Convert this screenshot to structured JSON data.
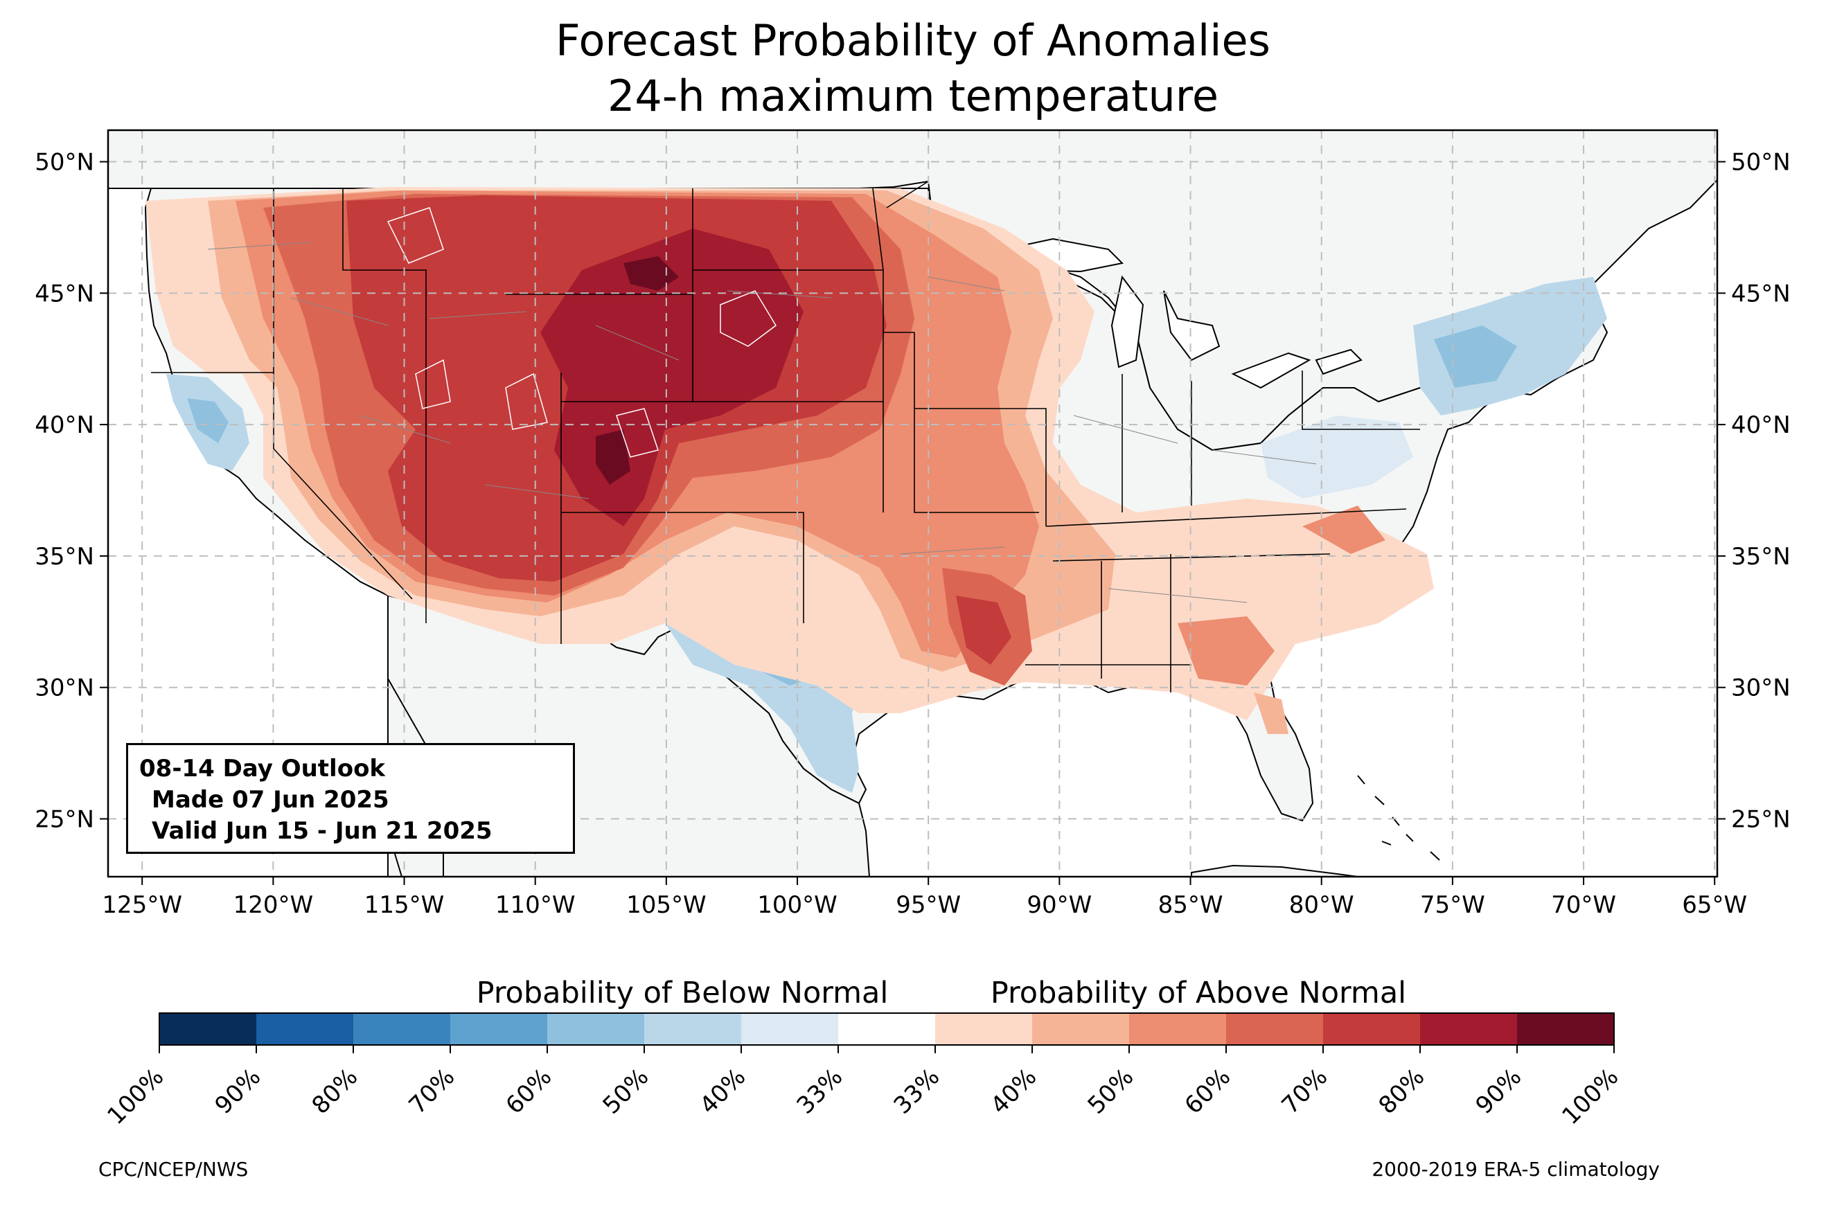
{
  "title": "Forecast Probability of Anomalies",
  "subtitle": "24-h maximum temperature",
  "map": {
    "projection": "lat-lon",
    "lon_range": [
      -126.3,
      -64.9
    ],
    "lat_range": [
      22.8,
      51.2
    ],
    "lat_ticks": [
      "50°N",
      "45°N",
      "40°N",
      "35°N",
      "30°N",
      "25°N"
    ],
    "lat_values": [
      50,
      45,
      40,
      35,
      30,
      25
    ],
    "lon_ticks": [
      "125°W",
      "120°W",
      "115°W",
      "110°W",
      "105°W",
      "100°W",
      "95°W",
      "90°W",
      "85°W",
      "80°W",
      "75°W",
      "70°W",
      "65°W"
    ],
    "lon_values": [
      -125,
      -120,
      -115,
      -110,
      -105,
      -100,
      -95,
      -90,
      -85,
      -80,
      -75,
      -70,
      -65
    ],
    "gridlines": "dashed",
    "land_color": "#f4f6f5",
    "ocean_color": "#ffffff"
  },
  "info_box": {
    "line1": "08-14 Day Outlook",
    "line2": "Made 07 Jun 2025",
    "line3": "Valid Jun 15 - Jun 21 2025"
  },
  "colorbar": {
    "below_label": "Probability of Below Normal",
    "above_label": "Probability of Above Normal",
    "tick_labels": [
      "100%",
      "90%",
      "80%",
      "70%",
      "60%",
      "50%",
      "40%",
      "33%",
      "33%",
      "40%",
      "50%",
      "60%",
      "70%",
      "80%",
      "90%",
      "100%"
    ],
    "colors": [
      "#072d5b",
      "#1a5ea3",
      "#3a84bd",
      "#5ea3cf",
      "#8fc1de",
      "#bad7ea",
      "#dde9f3",
      "#ffffff",
      "#fddac8",
      "#f6b497",
      "#ed8d71",
      "#db6553",
      "#c43b3b",
      "#a31b2e",
      "#6b0b22"
    ]
  },
  "regions": [
    {
      "name": "above-70-80-west",
      "category": "above",
      "probability": 0.75,
      "color": "#c43b3b"
    },
    {
      "name": "above-80-90-colorado",
      "category": "above",
      "probability": 0.85,
      "color": "#a31b2e"
    },
    {
      "name": "above-90-100-wyoming",
      "category": "above",
      "probability": 0.92,
      "color": "#6b0b22"
    },
    {
      "name": "above-50-70-northern-plains",
      "category": "above",
      "probability": 0.6,
      "color": "#db6553"
    },
    {
      "name": "below-50-60-texas",
      "category": "below",
      "probability": 0.55,
      "color": "#8fc1de"
    },
    {
      "name": "below-40-50-california",
      "category": "below",
      "probability": 0.45,
      "color": "#bad7ea"
    },
    {
      "name": "below-40-50-northeast",
      "category": "below",
      "probability": 0.45,
      "color": "#bad7ea"
    },
    {
      "name": "above-60-70-arkansas",
      "category": "above",
      "probability": 0.65,
      "color": "#db6553"
    }
  ],
  "footer": {
    "left": "CPC/NCEP/NWS",
    "right": "2000-2019 ERA-5 climatology"
  }
}
